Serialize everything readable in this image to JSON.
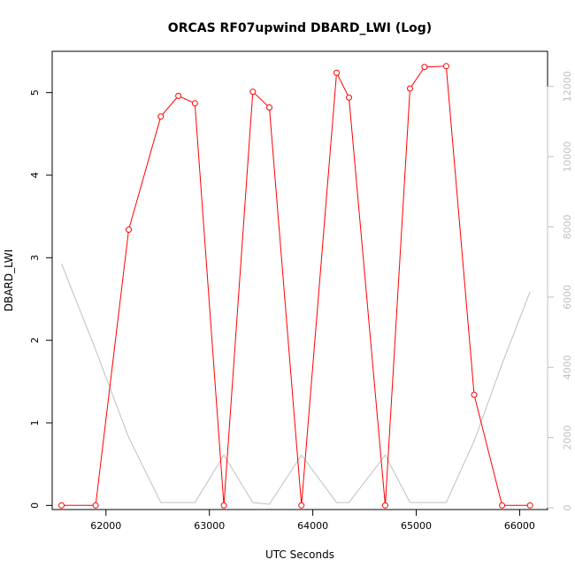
{
  "chart_data": {
    "type": "line",
    "title": "ORCAS RF07upwind DBARD_LWI (Log)",
    "xlabel": "UTC Seconds",
    "ylabel": "DBARD_LWI",
    "xlim": [
      61480,
      66270
    ],
    "ylim": [
      -0.05,
      5.5
    ],
    "y2lim": [
      -50,
      13000
    ],
    "x_ticks": [
      62000,
      63000,
      64000,
      65000,
      66000
    ],
    "y_ticks": [
      0,
      1,
      2,
      3,
      4,
      5
    ],
    "y2_ticks": [
      0,
      2000,
      4000,
      6000,
      8000,
      10000,
      12000
    ],
    "series": [
      {
        "color": "#ff0000",
        "marker": "open-circle",
        "axis": "left",
        "x": [
          61570,
          61900,
          62220,
          62530,
          62700,
          62860,
          63140,
          63420,
          63580,
          63890,
          64230,
          64350,
          64700,
          64940,
          65080,
          65290,
          65560,
          65830,
          66100
        ],
        "y": [
          0.0,
          0.0,
          3.34,
          4.71,
          4.96,
          4.87,
          0.0,
          5.01,
          4.82,
          0.0,
          5.24,
          4.94,
          0.0,
          5.05,
          5.31,
          5.32,
          1.34,
          0.0,
          0.0
        ]
      },
      {
        "color": "#c0c0c0",
        "marker": "none",
        "axis": "right",
        "x": [
          61570,
          61900,
          62220,
          62530,
          62700,
          62860,
          63140,
          63420,
          63580,
          63890,
          64230,
          64350,
          64700,
          64940,
          65080,
          65290,
          65560,
          65830,
          66100
        ],
        "y": [
          6950,
          4500,
          2000,
          150,
          150,
          150,
          1500,
          150,
          100,
          1500,
          150,
          150,
          1500,
          150,
          150,
          150,
          1900,
          4100,
          6150
        ]
      }
    ]
  }
}
